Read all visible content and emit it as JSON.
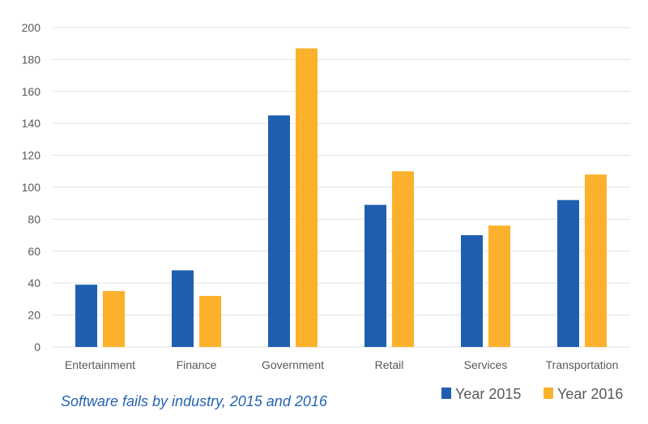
{
  "colors": {
    "series_2015": "#1f5fb0",
    "series_2016": "#fbb12c",
    "title": "#2662b1",
    "grid": "#e3e3e3",
    "axis_text": "#595959"
  },
  "chart_data": {
    "type": "bar",
    "title": "Software fails by industry, 2015 and 2016",
    "xlabel": "",
    "ylabel": "",
    "ylim": [
      0,
      200
    ],
    "yticks": [
      0,
      20,
      40,
      60,
      80,
      100,
      120,
      140,
      160,
      180,
      200
    ],
    "grid": true,
    "legend_position": "bottom-right",
    "categories": [
      "Entertainment",
      "Finance",
      "Government",
      "Retail",
      "Services",
      "Transportation"
    ],
    "series": [
      {
        "name": "Year 2015",
        "values": [
          39,
          48,
          145,
          89,
          70,
          92
        ]
      },
      {
        "name": "Year 2016",
        "values": [
          35,
          32,
          187,
          110,
          76,
          108
        ]
      }
    ]
  }
}
